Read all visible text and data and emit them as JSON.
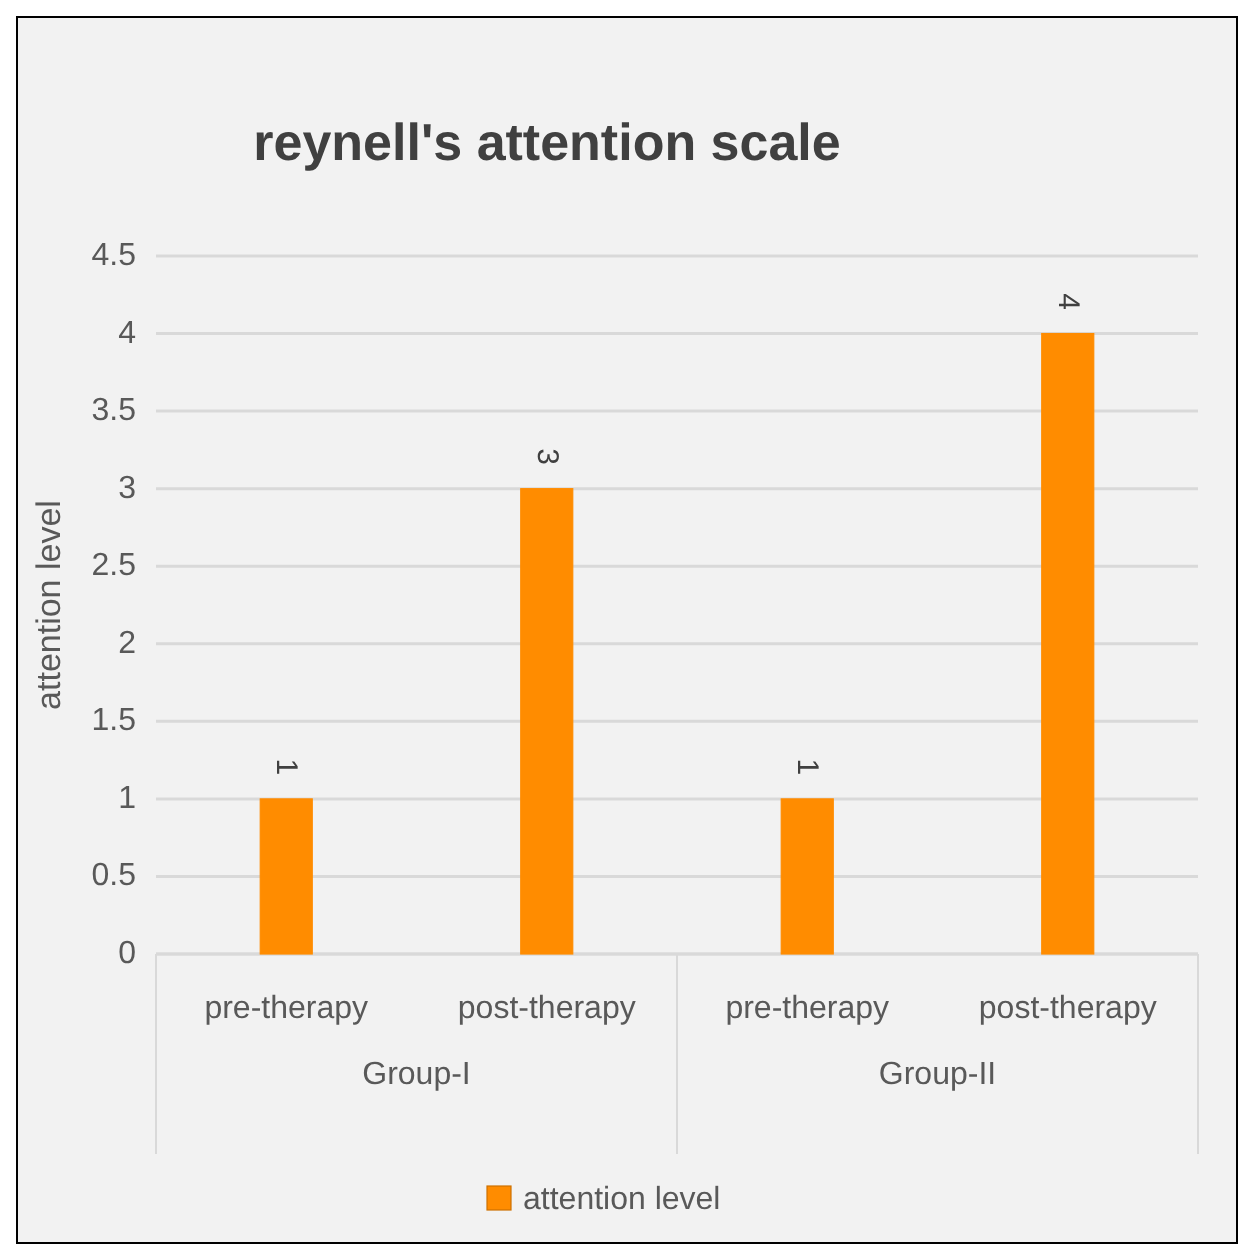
{
  "chart_data": {
    "type": "bar",
    "title": "reynell's attention scale",
    "ylabel": "attention level",
    "categories": [
      "pre-therapy",
      "post-therapy",
      "pre-therapy",
      "post-therapy"
    ],
    "series": [
      {
        "name": "attention level",
        "color": "#ff8c00",
        "values": [
          1,
          3,
          1,
          4
        ]
      }
    ],
    "ylim": [
      0,
      4.5
    ],
    "yticks": [
      0,
      0.5,
      1,
      1.5,
      2,
      2.5,
      3,
      3.5,
      4,
      4.5
    ],
    "grid": "y",
    "data_labels": true,
    "legend": "bottom",
    "annotations": [
      "Group-I",
      "Group-II"
    ]
  }
}
